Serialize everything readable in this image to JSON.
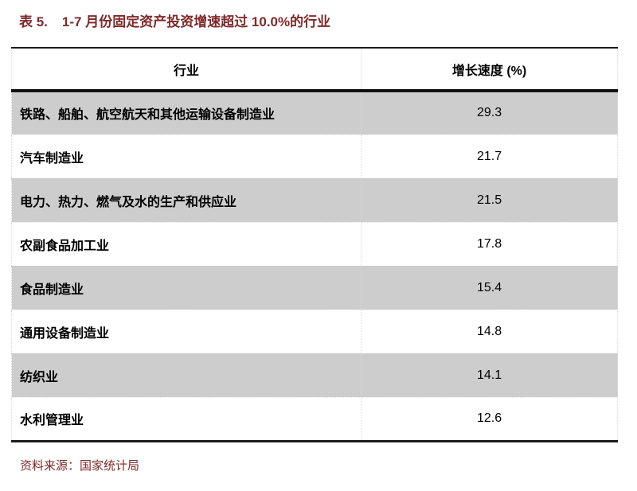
{
  "caption": {
    "label": "表 5.",
    "text": "1-7 月份固定资产投资增速超过 10.0%的行业"
  },
  "table": {
    "columns": [
      "行业",
      "增长速度 (%)"
    ],
    "rows": [
      {
        "industry": "铁路、船舶、航空航天和其他运输设备制造业",
        "growth": "29.3"
      },
      {
        "industry": "汽车制造业",
        "growth": "21.7"
      },
      {
        "industry": "电力、热力、燃气及水的生产和供应业",
        "growth": "21.5"
      },
      {
        "industry": "农副食品加工业",
        "growth": "17.8"
      },
      {
        "industry": "食品制造业",
        "growth": "15.4"
      },
      {
        "industry": "通用设备制造业",
        "growth": "14.8"
      },
      {
        "industry": "纺织业",
        "growth": "14.1"
      },
      {
        "industry": "水利管理业",
        "growth": "12.6"
      }
    ]
  },
  "footer": {
    "source": "资料来源：国家统计局"
  },
  "colors": {
    "caption_text": "#7e2a2a",
    "alt_row_background": "#cdcdcd",
    "border_black": "#1c1c1c"
  }
}
